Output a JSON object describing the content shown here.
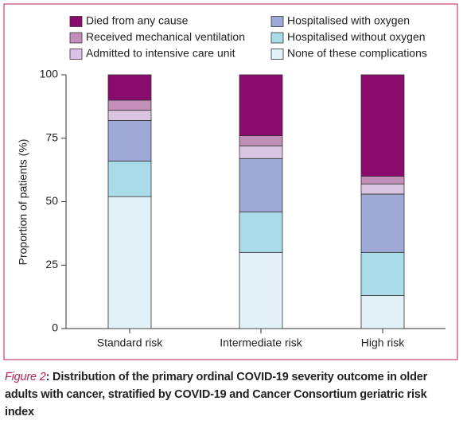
{
  "chart_data": {
    "type": "stacked_bar",
    "ylabel": "Proportion of patients (%)",
    "categories": [
      "Standard risk",
      "Intermediate risk",
      "High risk"
    ],
    "series": [
      {
        "name": "None of these complications",
        "color": "#e2f1f7",
        "values": [
          52,
          30,
          13
        ]
      },
      {
        "name": "Hospitalised without oxygen",
        "color": "#a9dce8",
        "values": [
          14,
          16,
          17
        ]
      },
      {
        "name": "Hospitalised with oxygen",
        "color": "#9ea9d5",
        "values": [
          16,
          21,
          23
        ]
      },
      {
        "name": "Admitted to intensive care unit",
        "color": "#d9c5e1",
        "values": [
          4,
          5,
          4
        ]
      },
      {
        "name": "Received mechanical ventilation",
        "color": "#c28fb9",
        "values": [
          4,
          4,
          3
        ]
      },
      {
        "name": "Died from any cause",
        "color": "#8b0b6d",
        "values": [
          10,
          24,
          40
        ]
      }
    ],
    "ylim": [
      0,
      100
    ],
    "yticks": [
      0,
      25,
      50,
      75,
      100
    ]
  },
  "caption_label": "Figure 2",
  "caption": ": Distribution of the primary ordinal COVID-19 severity outcome in older adults with cancer, stratified by COVID-19 and Cancer Consortium geriatric risk index"
}
